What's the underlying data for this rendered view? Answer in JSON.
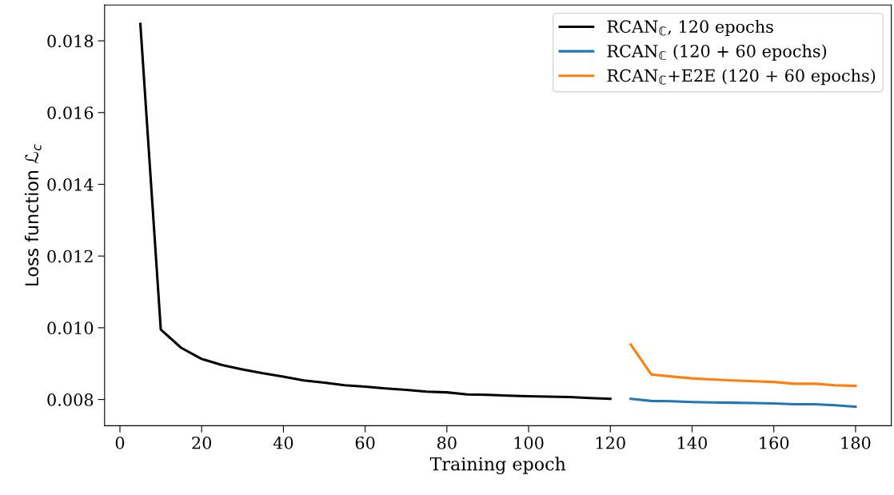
{
  "chart_data": {
    "type": "line",
    "xlabel": "Training epoch",
    "ylabel": "Loss function ℒ$_{c}$",
    "xlim": [
      -3.75,
      188.75
    ],
    "xticks": [
      0,
      20,
      40,
      60,
      80,
      100,
      120,
      140,
      160,
      180
    ],
    "ylim": [
      0.00727,
      0.019
    ],
    "yticks": [
      {
        "value": 0.008,
        "label": "0.008"
      },
      {
        "value": 0.01,
        "label": "0.010"
      },
      {
        "value": 0.012,
        "label": "0.012"
      },
      {
        "value": 0.014,
        "label": "0.014"
      },
      {
        "value": 0.016,
        "label": "0.016"
      },
      {
        "value": 0.018,
        "label": "0.018"
      }
    ],
    "grid": false,
    "legend": "top right",
    "marker": "none",
    "line_style": "solid",
    "series": [
      {
        "name": "RCAN$_{ℂ}$, 120 epochs",
        "color": "#000000",
        "x": [
          5,
          10,
          15,
          20,
          25,
          30,
          35,
          40,
          45,
          50,
          55,
          60,
          65,
          70,
          75,
          80,
          85,
          90,
          95,
          100,
          105,
          110,
          115,
          120
        ],
        "values": [
          0.01847,
          0.00995,
          0.00944,
          0.00913,
          0.00896,
          0.00884,
          0.00873,
          0.00864,
          0.00853,
          0.00847,
          0.0084,
          0.00836,
          0.00831,
          0.00827,
          0.00822,
          0.0082,
          0.00814,
          0.00813,
          0.00811,
          0.00809,
          0.00808,
          0.00807,
          0.00804,
          0.00802
        ]
      },
      {
        "name": "RCAN$_{ℂ}$ (120 + 60 epochs)",
        "color": "#1f77b4",
        "x": [
          125,
          130,
          135,
          140,
          145,
          150,
          155,
          160,
          165,
          170,
          175,
          180
        ],
        "values": [
          0.00802,
          0.00796,
          0.00795,
          0.00793,
          0.00792,
          0.00791,
          0.0079,
          0.00789,
          0.00787,
          0.00787,
          0.00784,
          0.0078
        ]
      },
      {
        "name": "RCAN$_{ℂ}$+E2E (120 + 60 epochs)",
        "color": "#ff7f0e",
        "x": [
          125,
          130,
          135,
          140,
          145,
          150,
          155,
          160,
          165,
          170,
          175,
          180
        ],
        "values": [
          0.00953,
          0.0087,
          0.00864,
          0.00859,
          0.00856,
          0.00853,
          0.00851,
          0.00849,
          0.00844,
          0.00844,
          0.0084,
          0.00838
        ]
      }
    ]
  }
}
